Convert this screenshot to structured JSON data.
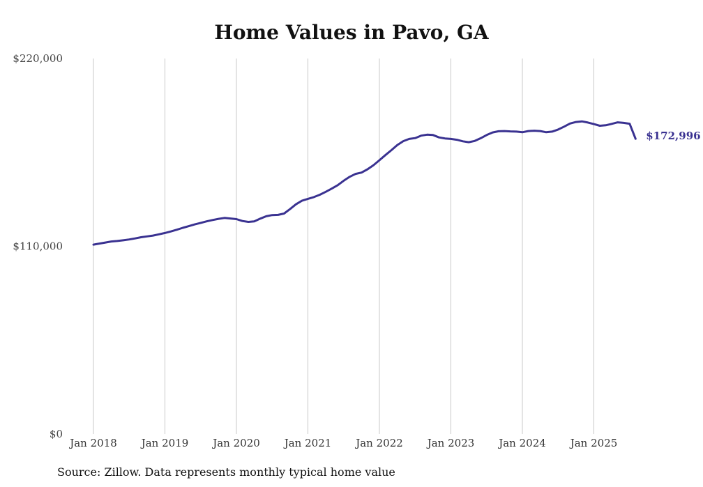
{
  "colors": {
    "line": "#3a3291",
    "grid": "#c8c8c8",
    "background": "#ffffff"
  },
  "source": "Source: Zillow. Data represents monthly typical home value",
  "chart_data": {
    "type": "line",
    "title": "Home Values in Pavo, GA",
    "xlabel": "",
    "ylabel": "",
    "x_start": "2018-01",
    "x_ticks": [
      "Jan 2018",
      "Jan 2019",
      "Jan 2020",
      "Jan 2021",
      "Jan 2022",
      "Jan 2023",
      "Jan 2024",
      "Jan 2025"
    ],
    "y_ticks": [
      "$0",
      "$110,000",
      "$220,000"
    ],
    "ylim": [
      0,
      220000
    ],
    "grid": "vertical",
    "end_label": "$172,996",
    "series": [
      {
        "values": [
          111000,
          111600,
          112200,
          112800,
          113100,
          113500,
          114000,
          114600,
          115300,
          115800,
          116300,
          117000,
          117800,
          118700,
          119700,
          120800,
          121800,
          122800,
          123700,
          124600,
          125400,
          126100,
          126600,
          126300,
          125900,
          124800,
          124300,
          124600,
          126200,
          127600,
          128300,
          128400,
          129200,
          131800,
          134600,
          136700,
          137800,
          138800,
          140200,
          141900,
          143800,
          145800,
          148400,
          150700,
          152400,
          153200,
          155100,
          157500,
          160400,
          163400,
          166300,
          169300,
          171600,
          172900,
          173400,
          174800,
          175400,
          175200,
          173800,
          173200,
          172900,
          172400,
          171500,
          171000,
          171700,
          173300,
          175200,
          176700,
          177400,
          177500,
          177300,
          177200,
          176800,
          177500,
          177700,
          177500,
          176800,
          177200,
          178400,
          180100,
          181900,
          182800,
          183200,
          182500,
          181600,
          180600,
          180900,
          181700,
          182600,
          182300,
          181800,
          172996
        ]
      }
    ]
  }
}
